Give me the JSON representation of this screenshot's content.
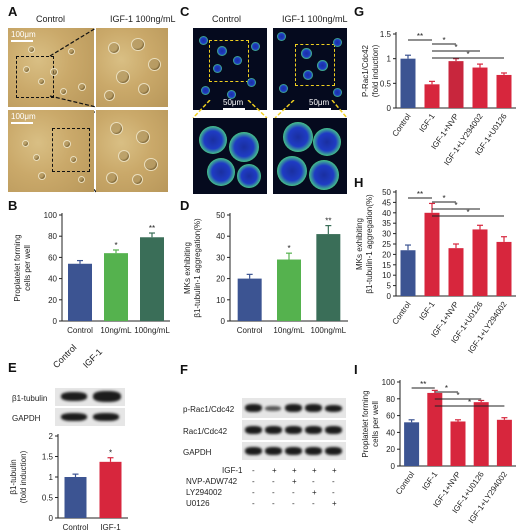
{
  "panels": {
    "A": {
      "label": "A",
      "col_control": "Control",
      "col_igf": "IGF-1 100ng/mL",
      "scale1": "100μm",
      "scale2": "100μm"
    },
    "B": {
      "label": "B",
      "ylabel": "Proplatelet forming\ncells per well",
      "ylim": [
        0,
        100
      ],
      "yticks": [
        0,
        20,
        40,
        60,
        80,
        100
      ],
      "categories": [
        "Control",
        "10ng/mL",
        "100ng/mL"
      ],
      "values": [
        54,
        64,
        79
      ],
      "errors": [
        3,
        3,
        4
      ],
      "sig": [
        "",
        "*",
        "**"
      ],
      "colors": [
        "#3c5492",
        "#55b24e",
        "#3a6e58"
      ]
    },
    "C": {
      "label": "C",
      "col_control": "Control",
      "col_igf": "IGF-1 100ng/mL",
      "scale1": "50μm",
      "scale2": "50μm"
    },
    "D": {
      "label": "D",
      "ylabel": "MKs exhibiting\nβ1-tubulin-1 aggregation(%)",
      "ylim": [
        0,
        50
      ],
      "yticks": [
        0,
        10,
        20,
        30,
        40,
        50
      ],
      "categories": [
        "Control",
        "10ng/mL",
        "100ng/mL"
      ],
      "values": [
        20,
        29,
        41
      ],
      "errors": [
        2,
        3,
        4
      ],
      "sig": [
        "",
        "*",
        "**"
      ],
      "colors": [
        "#3c5492",
        "#55b24e",
        "#3a6e58"
      ]
    },
    "E": {
      "label": "E",
      "col_control": "Control",
      "col_igf": "IGF-1",
      "row1": "β1-tubulin",
      "row2": "GAPDH",
      "ylabel": "β1-tubulin\n(fold induction)",
      "ylim": [
        0,
        2.0
      ],
      "yticks": [
        0,
        0.5,
        1.0,
        1.5,
        2.0
      ],
      "categories": [
        "Control",
        "IGF-1"
      ],
      "values": [
        1.0,
        1.37
      ],
      "errors": [
        0.07,
        0.1
      ],
      "sig": [
        "",
        "*"
      ],
      "colors": [
        "#3c5492",
        "#d7263d"
      ]
    },
    "F": {
      "label": "F",
      "rows": [
        "p-Rac1/Cdc42",
        "Rac1/Cdc42",
        "GAPDH"
      ],
      "treat_labels": [
        "IGF-1",
        "NVP-ADW742",
        "LY294002",
        "U0126"
      ],
      "treat_matrix": [
        [
          "-",
          "+",
          "+",
          "+",
          "+"
        ],
        [
          "-",
          "-",
          "+",
          "-",
          "-"
        ],
        [
          "-",
          "-",
          "-",
          "+",
          "-"
        ],
        [
          "-",
          "-",
          "-",
          "-",
          "+"
        ]
      ]
    },
    "G": {
      "label": "G",
      "ylabel": "P-Rac1/Cdc42\n(fold induction)",
      "ylim": [
        0,
        1.5
      ],
      "yticks": [
        0,
        0.5,
        1.0,
        1.5
      ],
      "categories": [
        "Control",
        "IGF-1",
        "IGF-1+NVP",
        "IGF-1+LY294002",
        "IGF-1+U0126"
      ],
      "values": [
        1.0,
        0.48,
        0.95,
        0.82,
        0.67
      ],
      "errors": [
        0.07,
        0.06,
        0.05,
        0.07,
        0.04
      ],
      "colors": [
        "#3c5492",
        "#d7263d",
        "#c8263d",
        "#d7263d",
        "#d7263d"
      ],
      "sig_marks": [
        {
          "a": 0,
          "b": 1,
          "t": "**"
        },
        {
          "a": 1,
          "b": 2,
          "t": "*"
        },
        {
          "a": 1,
          "b": 3,
          "t": "*"
        },
        {
          "a": 1,
          "b": 4,
          "t": "*"
        }
      ]
    },
    "H": {
      "label": "H",
      "ylabel": "MKs exhibiting\nβ1-tubulin-1 aggregation(%)",
      "ylim": [
        0,
        50
      ],
      "yticks": [
        0,
        5,
        10,
        15,
        20,
        25,
        30,
        35,
        40,
        45,
        50
      ],
      "categories": [
        "Control",
        "IGF-1",
        "IGF-1+NVP",
        "IGF-1+U0126",
        "IGF-1+LY294002"
      ],
      "values": [
        22,
        40,
        23,
        32,
        26
      ],
      "errors": [
        2.5,
        4.5,
        2,
        2,
        2.5
      ],
      "colors": [
        "#3c5492",
        "#d7263d",
        "#d7263d",
        "#d7263d",
        "#d7263d"
      ],
      "sig_marks": [
        {
          "a": 0,
          "b": 1,
          "t": "**"
        },
        {
          "a": 1,
          "b": 2,
          "t": "*"
        },
        {
          "a": 1,
          "b": 3,
          "t": "*"
        },
        {
          "a": 1,
          "b": 4,
          "t": "*"
        }
      ]
    },
    "I": {
      "label": "I",
      "ylabel": "Proplatelet forming\ncells per well",
      "ylim": [
        0,
        100
      ],
      "yticks": [
        0,
        20,
        40,
        60,
        80,
        100
      ],
      "categories": [
        "Control",
        "IGF-1",
        "IGF-1+NVP",
        "IGF-1+U0126",
        "IGF-1+LY294002"
      ],
      "values": [
        52,
        87,
        53,
        76,
        55
      ],
      "errors": [
        3,
        3,
        2,
        2,
        2.5
      ],
      "colors": [
        "#3c5492",
        "#d7263d",
        "#d7263d",
        "#d7263d",
        "#d7263d"
      ],
      "sig_marks": [
        {
          "a": 0,
          "b": 1,
          "t": "**"
        },
        {
          "a": 1,
          "b": 2,
          "t": "*"
        },
        {
          "a": 1,
          "b": 3,
          "t": "*"
        },
        {
          "a": 1,
          "b": 4,
          "t": "*"
        }
      ]
    }
  }
}
